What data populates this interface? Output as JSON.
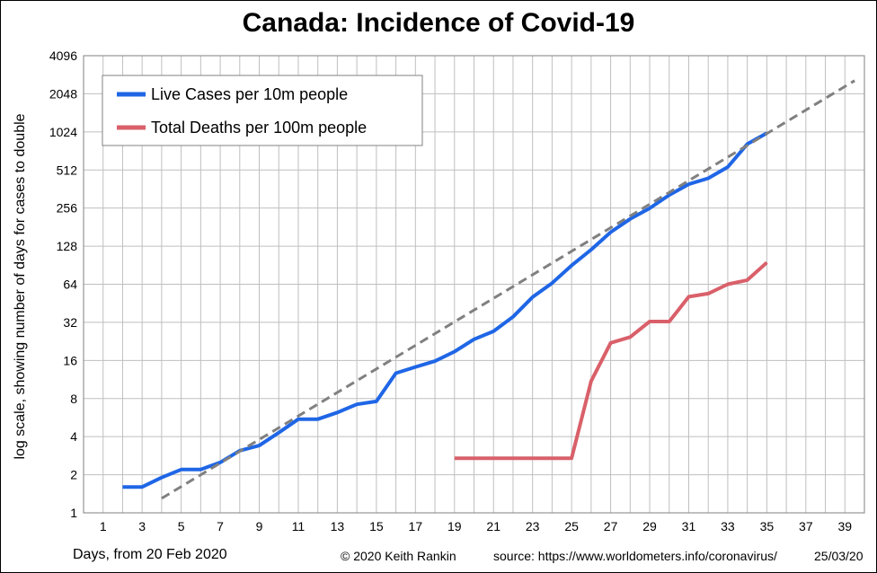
{
  "chart_data": {
    "type": "line",
    "title": "Canada: Incidence of Covid-19",
    "ylabel": "log scale, showing number of days for cases to double",
    "xlabel": "Days, from 20 Feb 2020",
    "yscale": "log2",
    "ylim": [
      1,
      4096
    ],
    "xlim": [
      0,
      40
    ],
    "yticks": [
      1,
      2,
      4,
      8,
      16,
      32,
      64,
      128,
      256,
      512,
      1024,
      2048,
      4096
    ],
    "yticklabels": [
      "1",
      "2",
      "4",
      "8",
      "16",
      "32",
      "64",
      "128",
      "256",
      "512",
      "1024",
      "2048",
      "4096"
    ],
    "xticks": [
      1,
      3,
      5,
      7,
      9,
      11,
      13,
      15,
      17,
      19,
      21,
      23,
      25,
      27,
      29,
      31,
      33,
      35,
      37,
      39
    ],
    "xticklabels": [
      "1",
      "3",
      "5",
      "7",
      "9",
      "11",
      "13",
      "15",
      "17",
      "19",
      "21",
      "23",
      "25",
      "27",
      "29",
      "31",
      "33",
      "35",
      "37",
      "39"
    ],
    "grid": true,
    "legend_position": "top-left",
    "series": [
      {
        "name": "Live Cases per 10m people",
        "color": "#1f66e6",
        "style": "solid",
        "x": [
          2,
          3,
          4,
          5,
          6,
          7,
          8,
          9,
          10,
          11,
          12,
          13,
          14,
          15,
          16,
          17,
          18,
          19,
          20,
          21,
          22,
          23,
          24,
          25,
          26,
          27,
          28,
          29,
          30,
          31,
          32,
          33,
          34,
          35
        ],
        "y": [
          1.6,
          1.6,
          1.9,
          2.2,
          2.2,
          2.5,
          3.1,
          3.4,
          4.3,
          5.5,
          5.5,
          6.2,
          7.2,
          7.6,
          12.7,
          14.2,
          15.8,
          18.8,
          23.5,
          27.2,
          35.4,
          50.7,
          65.4,
          90,
          120,
          165,
          210,
          255,
          325,
          395,
          440,
          540,
          820,
          1000
        ]
      },
      {
        "name": "Total Deaths per 100m people",
        "color": "#d9606a",
        "style": "solid",
        "x": [
          19,
          20,
          21,
          22,
          23,
          24,
          25,
          26,
          27,
          28,
          29,
          30,
          31,
          32,
          33,
          34,
          35
        ],
        "y": [
          2.7,
          2.7,
          2.7,
          2.7,
          2.7,
          2.7,
          2.7,
          11,
          22,
          24.5,
          32.5,
          32.5,
          51,
          54,
          64,
          69,
          95
        ]
      },
      {
        "name": "",
        "color": "#808080",
        "style": "dashed",
        "x": [
          4,
          39.5
        ],
        "y": [
          1.3,
          2600
        ]
      }
    ],
    "footer": {
      "copyright": "© 2020  Keith Rankin",
      "source": "source:  https://www.worldometers.info/coronavirus/",
      "date": "25/03/20"
    }
  }
}
